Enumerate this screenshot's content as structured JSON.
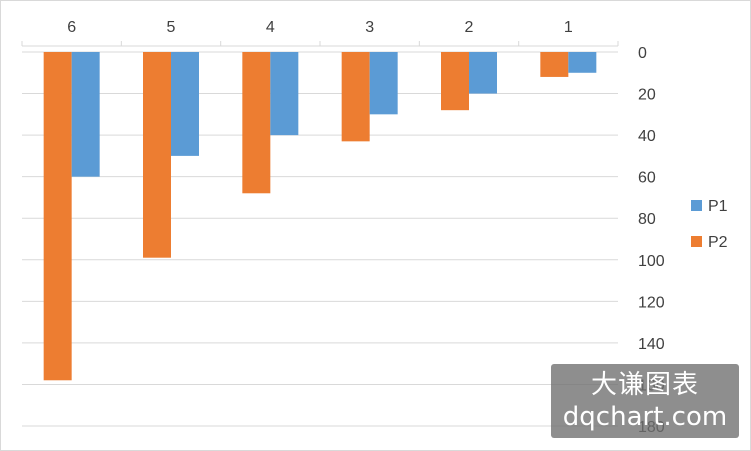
{
  "chart_data": {
    "type": "bar",
    "orientation": "vertical-downward",
    "categories": [
      "6",
      "5",
      "4",
      "3",
      "2",
      "1"
    ],
    "series": [
      {
        "name": "P2",
        "color": "#ed7d31",
        "values": [
          158,
          99,
          68,
          43,
          28,
          12
        ]
      },
      {
        "name": "P1",
        "color": "#5b9bd5",
        "values": [
          60,
          50,
          40,
          30,
          20,
          10
        ]
      }
    ],
    "x_axis_position": "top",
    "y_axis_position": "right",
    "y_axis_reversed": true,
    "ylim": [
      0,
      180
    ],
    "y_ticks": [
      "0",
      "20",
      "40",
      "60",
      "80",
      "100",
      "120",
      "140",
      "160",
      "180"
    ],
    "grid": true,
    "legend": {
      "placement": "right",
      "entries": [
        {
          "name": "P1",
          "color": "#5b9bd5"
        },
        {
          "name": "P2",
          "color": "#ed7d31"
        }
      ]
    },
    "title": "",
    "xlabel": "",
    "ylabel": ""
  },
  "watermark": {
    "line1": "大谦图表",
    "line2": "dqchart.com"
  }
}
